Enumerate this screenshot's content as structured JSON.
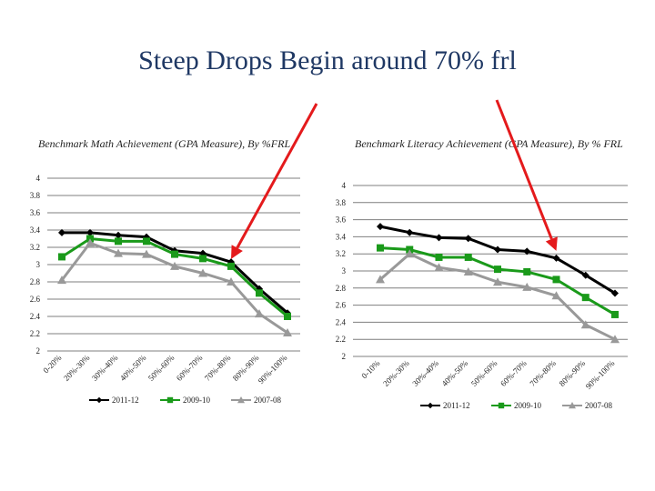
{
  "slide": {
    "title": "Steep Drops Begin around 70% frl"
  },
  "colors": {
    "arrow": "#e41a1c",
    "grid": "#7f7f7f"
  },
  "chart_data": [
    {
      "type": "line",
      "title": "Benchmark Math Achievement (GPA Measure), By %FRL",
      "categories": [
        "0-20%",
        "20%-30%",
        "30%-40%",
        "40%-50%",
        "50%-60%",
        "60%-70%",
        "70%-80%",
        "80%-90%",
        "90%-100%"
      ],
      "ylim": [
        2,
        4
      ],
      "yticks": [
        "2",
        "2.2",
        "2.4",
        "2.6",
        "2.8",
        "3",
        "3.2",
        "3.4",
        "3.6",
        "3.8",
        "4"
      ],
      "grid": true,
      "legend": "bottom",
      "series": [
        {
          "name": "2011-12",
          "color": "#000000",
          "marker": "diamond",
          "values": [
            3.37,
            3.37,
            3.34,
            3.32,
            3.16,
            3.13,
            3.03,
            2.72,
            2.44
          ]
        },
        {
          "name": "2009-10",
          "color": "#1a9a1a",
          "marker": "square",
          "values": [
            3.09,
            3.3,
            3.27,
            3.27,
            3.12,
            3.07,
            2.98,
            2.67,
            2.4
          ]
        },
        {
          "name": "2007-08",
          "color": "#999999",
          "marker": "triangle",
          "values": [
            2.82,
            3.25,
            3.13,
            3.12,
            2.98,
            2.9,
            2.8,
            2.43,
            2.21
          ]
        }
      ],
      "arrow": {
        "category_index": 6,
        "series": "2009-10"
      }
    },
    {
      "type": "line",
      "title": "Benchmark Literacy Achievement (GPA Measure), By % FRL",
      "categories": [
        "0-10%",
        "20%-30%",
        "30%-40%",
        "40%-50%",
        "50%-60%",
        "60%-70%",
        "70%-80%",
        "80%-90%",
        "90%-100%"
      ],
      "ylim": [
        2,
        4
      ],
      "yticks": [
        "2",
        "2.2",
        "2.4",
        "2.6",
        "2.8",
        "3",
        "3.2",
        "3.4",
        "3.6",
        "3.8",
        "4"
      ],
      "grid": true,
      "legend": "bottom",
      "series": [
        {
          "name": "2011-12",
          "color": "#000000",
          "marker": "diamond",
          "values": [
            3.52,
            3.45,
            3.39,
            3.38,
            3.25,
            3.23,
            3.15,
            2.95,
            2.74
          ]
        },
        {
          "name": "2009-10",
          "color": "#1a9a1a",
          "marker": "square",
          "values": [
            3.27,
            3.25,
            3.16,
            3.16,
            3.02,
            2.99,
            2.9,
            2.69,
            2.49
          ]
        },
        {
          "name": "2007-08",
          "color": "#999999",
          "marker": "triangle",
          "values": [
            2.9,
            3.2,
            3.04,
            2.99,
            2.87,
            2.81,
            2.71,
            2.37,
            2.2
          ]
        }
      ],
      "arrow": {
        "category_index": 6,
        "series": "2011-12"
      }
    }
  ]
}
